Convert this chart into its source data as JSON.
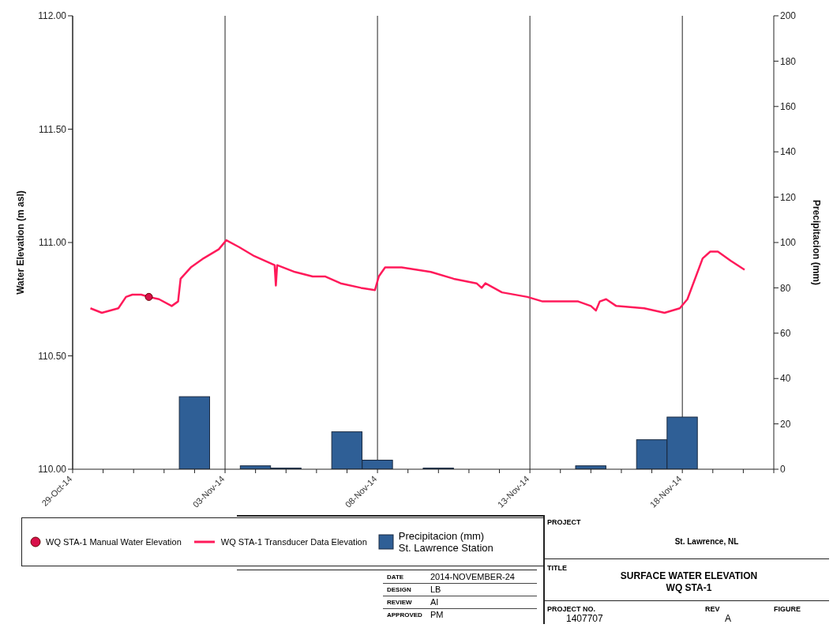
{
  "chart_data": {
    "type": "line",
    "title": "SURFACE WATER ELEVATION",
    "subtitle": "WQ STA-1",
    "ylabel": "Water Elevation (m asl)",
    "y2label": "Precipitacion (mm)",
    "xlim": [
      "2014-10-29",
      "2014-11-21"
    ],
    "xticks": [
      {
        "value": "2014-10-29",
        "label": "29-Oct-14"
      },
      {
        "value": "2014-10-30",
        "label": null
      },
      {
        "value": "2014-10-31",
        "label": null
      },
      {
        "value": "2014-11-01",
        "label": null
      },
      {
        "value": "2014-11-02",
        "label": null
      },
      {
        "value": "2014-11-03",
        "label": "03-Nov-14"
      },
      {
        "value": "2014-11-04",
        "label": null
      },
      {
        "value": "2014-11-05",
        "label": null
      },
      {
        "value": "2014-11-06",
        "label": null
      },
      {
        "value": "2014-11-07",
        "label": null
      },
      {
        "value": "2014-11-08",
        "label": "08-Nov-14"
      },
      {
        "value": "2014-11-09",
        "label": null
      },
      {
        "value": "2014-11-10",
        "label": null
      },
      {
        "value": "2014-11-11",
        "label": null
      },
      {
        "value": "2014-11-12",
        "label": null
      },
      {
        "value": "2014-11-13",
        "label": "13-Nov-14"
      },
      {
        "value": "2014-11-14",
        "label": null
      },
      {
        "value": "2014-11-15",
        "label": null
      },
      {
        "value": "2014-11-16",
        "label": null
      },
      {
        "value": "2014-11-17",
        "label": null
      },
      {
        "value": "2014-11-18",
        "label": "18-Nov-14"
      },
      {
        "value": "2014-11-19",
        "label": null
      },
      {
        "value": "2014-11-20",
        "label": null
      },
      {
        "value": "2014-11-21",
        "label": null
      }
    ],
    "ylim": [
      110,
      112
    ],
    "yticks": [
      {
        "value": 110,
        "label": "110.00"
      },
      {
        "value": 110.5,
        "label": "110.50"
      },
      {
        "value": 111,
        "label": "111.00"
      },
      {
        "value": 111.5,
        "label": "111.50"
      },
      {
        "value": 112,
        "label": "112.00"
      }
    ],
    "y2lim": [
      0,
      200
    ],
    "y2ticks": [
      0,
      20,
      40,
      60,
      80,
      100,
      120,
      140,
      160,
      180,
      200
    ],
    "grid": true,
    "legend": "bottom",
    "series": [
      {
        "name": "Precipitacion (mm)\nSt. Lawrence Station",
        "type": "bar",
        "axis": "y2",
        "color": "#2f5f96",
        "x": [
          "2014-11-02",
          "2014-11-04",
          "2014-11-05",
          "2014-11-07",
          "2014-11-08",
          "2014-11-10",
          "2014-11-15",
          "2014-11-17",
          "2014-11-18"
        ],
        "values": [
          32,
          1.5,
          0.5,
          16.5,
          4,
          0.5,
          1.5,
          13,
          23
        ]
      },
      {
        "name": "WQ STA-1 Transducer Data Elevation",
        "color": "#ff1a5a",
        "marker": "none",
        "line_style": "solid",
        "x": [
          "2014-10-29T14:00",
          "2014-10-29T23:00",
          "2014-10-30T12:00",
          "2014-10-30T18:00",
          "2014-10-30T23:00",
          "2014-10-31T06:00",
          "2014-10-31T12:00",
          "2014-10-31T20:00",
          "2014-11-01T06:00",
          "2014-11-01T11:00",
          "2014-11-01T13:00",
          "2014-11-01T21:00",
          "2014-11-02T07:00",
          "2014-11-02T19:00",
          "2014-11-03T01:00",
          "2014-11-03T11:00",
          "2014-11-03T23:00",
          "2014-11-04T15:00",
          "2014-11-04T16:00",
          "2014-11-04T17:00",
          "2014-11-05T07:00",
          "2014-11-05T21:00",
          "2014-11-06T07:00",
          "2014-11-06T19:00",
          "2014-11-07T11:00",
          "2014-11-07T22:00",
          "2014-11-08T01:00",
          "2014-11-08T06:00",
          "2014-11-08T19:00",
          "2014-11-09T07:00",
          "2014-11-09T18:00",
          "2014-11-10T12:00",
          "2014-11-11T06:00",
          "2014-11-11T10:00",
          "2014-11-11T13:00",
          "2014-11-12T02:00",
          "2014-11-12T22:00",
          "2014-11-13T10:00",
          "2014-11-14T14:00",
          "2014-11-15T00:00",
          "2014-11-15T04:00",
          "2014-11-15T07:00",
          "2014-11-15T12:00",
          "2014-11-15T20:00",
          "2014-11-16T18:00",
          "2014-11-17T10:00",
          "2014-11-17T22:00",
          "2014-11-18T04:00",
          "2014-11-18T16:00",
          "2014-11-18T22:00",
          "2014-11-19T04:00",
          "2014-11-19T14:00",
          "2014-11-20T01:00"
        ],
        "values": [
          110.71,
          110.69,
          110.71,
          110.76,
          110.77,
          110.77,
          110.76,
          110.75,
          110.72,
          110.74,
          110.84,
          110.89,
          110.93,
          110.97,
          111.01,
          110.98,
          110.94,
          110.9,
          110.81,
          110.9,
          110.87,
          110.85,
          110.85,
          110.82,
          110.8,
          110.79,
          110.85,
          110.89,
          110.89,
          110.88,
          110.87,
          110.84,
          110.82,
          110.8,
          110.82,
          110.78,
          110.76,
          110.74,
          110.74,
          110.72,
          110.7,
          110.74,
          110.75,
          110.72,
          110.71,
          110.69,
          110.71,
          110.75,
          110.93,
          110.96,
          110.96,
          110.92,
          110.88
        ]
      },
      {
        "name": "WQ STA-1 Manual Water Elevation",
        "type": "scatter",
        "color": "#d8104a",
        "marker": "circle",
        "x": [
          "2014-10-31T12:00"
        ],
        "values": [
          110.76
        ]
      }
    ],
    "annotations": [
      "PROJECT",
      "St. Lawrence, NL",
      "TITLE",
      "DATE",
      "2014-NOVEMBER-24",
      "DESIGN",
      "LB",
      "REVIEW",
      "AI",
      "APPROVED",
      "PM",
      "PROJECT NO.",
      "1407707",
      "REV",
      "A",
      "FIGURE"
    ]
  }
}
